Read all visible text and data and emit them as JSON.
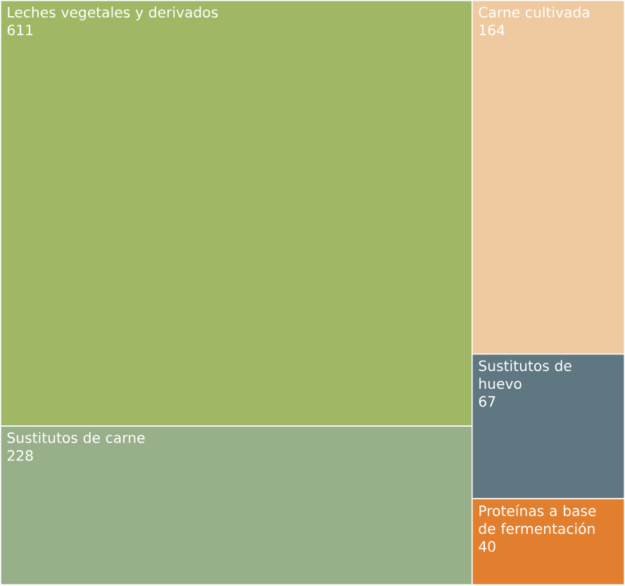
{
  "chart_data": {
    "type": "other",
    "categories": [
      "Leches vegetales y derivados",
      "Sustitutos de carne",
      "Carne cultivada",
      "Sustitutos de huevo",
      "Proteínas a base de fermentación"
    ],
    "values": [
      611,
      228,
      164,
      67,
      40
    ],
    "colors": [
      "#a0b866",
      "#98b08a",
      "#efc9a0",
      "#5f7780",
      "#e27f2e"
    ],
    "data_labels": true
  }
}
